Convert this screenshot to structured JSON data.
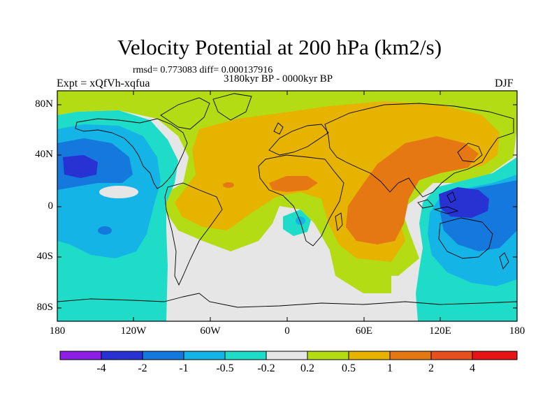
{
  "title": "Velocity Potential at 200 hPa (km2/s)",
  "stats": "rmsd= 0.773083 diff= 0.000137916",
  "period": "3180kyr BP - 0000kyr BP",
  "experiment": "Expt = xQfVh-xqfua",
  "season": "DJF",
  "lat_labels": [
    "80N",
    "40N",
    "0",
    "40S",
    "80S"
  ],
  "lon_labels": [
    "180",
    "120W",
    "60W",
    "0",
    "60E",
    "120E",
    "180"
  ],
  "colorbar": {
    "labels": [
      "-4",
      "-2",
      "-1",
      "-0.5",
      "-0.2",
      "0.2",
      "0.5",
      "1",
      "2",
      "4"
    ],
    "colors": [
      "#8c1ee6",
      "#2832d2",
      "#1478dc",
      "#14b4e6",
      "#1edcc8",
      "#e6e6e6",
      "#b4dc14",
      "#e6b400",
      "#e67814",
      "#e6501e",
      "#e61414"
    ]
  }
}
